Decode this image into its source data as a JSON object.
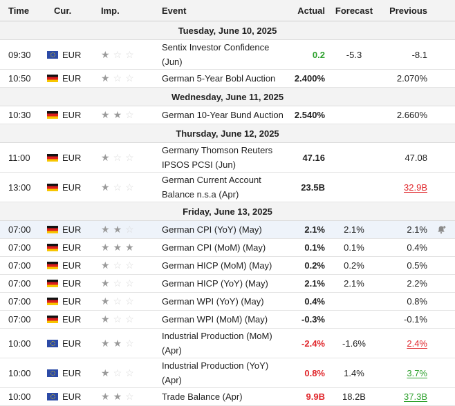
{
  "header": {
    "time": "Time",
    "cur": "Cur.",
    "imp": "Imp.",
    "event": "Event",
    "actual": "Actual",
    "forecast": "Forecast",
    "previous": "Previous"
  },
  "colors": {
    "positive": "#2ca02c",
    "negative": "#e0262b",
    "star_on": "#9a9a9a",
    "star_off": "#d9d9d9",
    "highlight_row": "#eef3fa"
  },
  "dates": {
    "d1": "Tuesday, June 10, 2025",
    "d2": "Wednesday, June 11, 2025",
    "d3": "Thursday, June 12, 2025",
    "d4": "Friday, June 13, 2025"
  },
  "rows": [
    {
      "time": "09:30",
      "cur": "EUR",
      "flag": "eu",
      "stars": 1,
      "event": "Sentix Investor Confidence (Jun)",
      "actual": "0.2",
      "forecast": "-5.3",
      "previous": "-8.1"
    },
    {
      "time": "10:50",
      "cur": "EUR",
      "flag": "de",
      "stars": 1,
      "event": "German 5-Year Bobl Auction",
      "actual": "2.400%",
      "forecast": "",
      "previous": "2.070%"
    },
    {
      "time": "10:30",
      "cur": "EUR",
      "flag": "de",
      "stars": 2,
      "event": "German 10-Year Bund Auction",
      "actual": "2.540%",
      "forecast": "",
      "previous": "2.660%"
    },
    {
      "time": "11:00",
      "cur": "EUR",
      "flag": "de",
      "stars": 1,
      "event_line1": "Germany Thomson Reuters",
      "event_line2": "IPSOS PCSI (Jun)",
      "actual": "47.16",
      "forecast": "",
      "previous": "47.08"
    },
    {
      "time": "13:00",
      "cur": "EUR",
      "flag": "de",
      "stars": 1,
      "event_line1": "German Current Account",
      "event_line2": "Balance n.s.a (Apr)",
      "actual": "23.5B",
      "forecast": "",
      "previous": "32.9B"
    },
    {
      "time": "07:00",
      "cur": "EUR",
      "flag": "de",
      "stars": 2,
      "event": "German CPI (YoY) (May)",
      "actual": "2.1%",
      "forecast": "2.1%",
      "previous": "2.1%"
    },
    {
      "time": "07:00",
      "cur": "EUR",
      "flag": "de",
      "stars": 3,
      "event": "German CPI (MoM) (May)",
      "actual": "0.1%",
      "forecast": "0.1%",
      "previous": "0.4%"
    },
    {
      "time": "07:00",
      "cur": "EUR",
      "flag": "de",
      "stars": 1,
      "event": "German HICP (MoM) (May)",
      "actual": "0.2%",
      "forecast": "0.2%",
      "previous": "0.5%"
    },
    {
      "time": "07:00",
      "cur": "EUR",
      "flag": "de",
      "stars": 1,
      "event": "German HICP (YoY) (May)",
      "actual": "2.1%",
      "forecast": "2.1%",
      "previous": "2.2%"
    },
    {
      "time": "07:00",
      "cur": "EUR",
      "flag": "de",
      "stars": 1,
      "event": "German WPI (YoY) (May)",
      "actual": "0.4%",
      "forecast": "",
      "previous": "0.8%"
    },
    {
      "time": "07:00",
      "cur": "EUR",
      "flag": "de",
      "stars": 1,
      "event": "German WPI (MoM) (May)",
      "actual": "-0.3%",
      "forecast": "",
      "previous": "-0.1%"
    },
    {
      "time": "10:00",
      "cur": "EUR",
      "flag": "eu",
      "stars": 2,
      "event_line1": "Industrial Production (MoM)",
      "event_line2": "(Apr)",
      "actual": "-2.4%",
      "forecast": "-1.6%",
      "previous": "2.4%"
    },
    {
      "time": "10:00",
      "cur": "EUR",
      "flag": "eu",
      "stars": 1,
      "event": "Industrial Production (YoY) (Apr)",
      "actual": "0.8%",
      "forecast": "1.4%",
      "previous": "3.7%"
    },
    {
      "time": "10:00",
      "cur": "EUR",
      "flag": "eu",
      "stars": 2,
      "event": "Trade Balance (Apr)",
      "actual": "9.9B",
      "forecast": "18.2B",
      "previous": "37.3B"
    }
  ]
}
